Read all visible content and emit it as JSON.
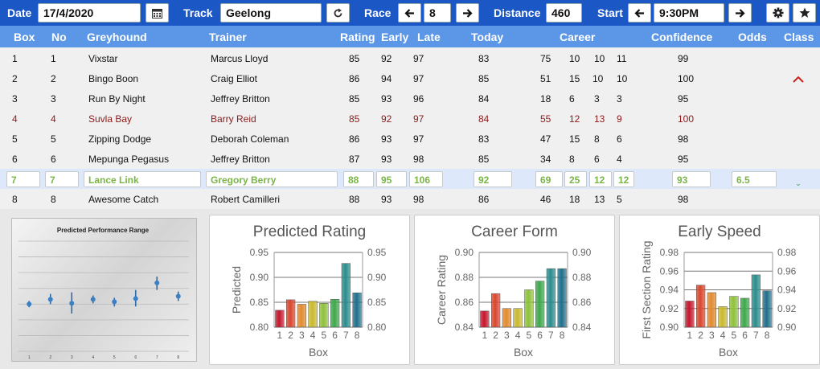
{
  "topbar": {
    "date_label": "Date",
    "date_value": "17/4/2020",
    "calendar_icon": "calendar-icon",
    "track_label": "Track",
    "track_value": "Geelong",
    "refresh_icon": "refresh-icon",
    "race_label": "Race",
    "race_value": "8",
    "prev_icon": "arrow-left-icon",
    "next_icon": "arrow-right-icon",
    "distance_label": "Distance",
    "distance_value": "460",
    "start_label": "Start",
    "start_value": "9:30PM",
    "settings_icon": "gear-icon",
    "favorite_icon": "star-icon"
  },
  "header": {
    "box": "Box",
    "no": "No",
    "greyhound": "Greyhound",
    "trainer": "Trainer",
    "rating": "Rating",
    "early": "Early",
    "late": "Late",
    "today": "Today",
    "career": "Career",
    "confidence": "Confidence",
    "odds": "Odds",
    "class": "Class"
  },
  "rows": [
    {
      "box": "1",
      "no": "1",
      "greyhound": "Vixstar",
      "trainer": "Marcus Lloyd",
      "rating": "85",
      "early": "92",
      "late": "97",
      "today": "83",
      "career": [
        "75",
        "10",
        "10",
        "11"
      ],
      "confidence": "99",
      "odds": "",
      "class": ""
    },
    {
      "box": "2",
      "no": "2",
      "greyhound": "Bingo Boon",
      "trainer": "Craig Elliot",
      "rating": "86",
      "early": "94",
      "late": "97",
      "today": "85",
      "career": [
        "51",
        "15",
        "10",
        "10"
      ],
      "confidence": "100",
      "odds": "",
      "class": "up"
    },
    {
      "box": "3",
      "no": "3",
      "greyhound": "Run By Night",
      "trainer": "Jeffrey Britton",
      "rating": "85",
      "early": "93",
      "late": "96",
      "today": "84",
      "career": [
        "18",
        "6",
        "3",
        "3"
      ],
      "confidence": "95",
      "odds": "",
      "class": ""
    },
    {
      "box": "4",
      "no": "4",
      "greyhound": "Suvla Bay",
      "trainer": "Barry Reid",
      "rating": "85",
      "early": "92",
      "late": "97",
      "today": "84",
      "career": [
        "55",
        "12",
        "13",
        "9"
      ],
      "confidence": "100",
      "odds": "",
      "class": ""
    },
    {
      "box": "5",
      "no": "5",
      "greyhound": "Zipping Dodge",
      "trainer": "Deborah Coleman",
      "rating": "86",
      "early": "93",
      "late": "97",
      "today": "83",
      "career": [
        "47",
        "15",
        "8",
        "6"
      ],
      "confidence": "98",
      "odds": "",
      "class": ""
    },
    {
      "box": "6",
      "no": "6",
      "greyhound": "Mepunga Pegasus",
      "trainer": "Jeffrey Britton",
      "rating": "87",
      "early": "93",
      "late": "98",
      "today": "85",
      "career": [
        "34",
        "8",
        "6",
        "4"
      ],
      "confidence": "95",
      "odds": "",
      "class": ""
    },
    {
      "box": "7",
      "no": "7",
      "greyhound": "Lance Link",
      "trainer": "Gregory Berry",
      "rating": "88",
      "early": "95",
      "late": "106",
      "today": "92",
      "career": [
        "69",
        "25",
        "12",
        "12"
      ],
      "confidence": "93",
      "odds": "6.5",
      "class": "down"
    },
    {
      "box": "8",
      "no": "8",
      "greyhound": "Awesome Catch",
      "trainer": "Robert Camilleri",
      "rating": "88",
      "early": "93",
      "late": "98",
      "today": "86",
      "career": [
        "46",
        "18",
        "13",
        "5"
      ],
      "confidence": "98",
      "odds": "",
      "class": ""
    }
  ],
  "colors": {
    "topbar": "#1c57c6",
    "header": "#5b97e6",
    "highlight_text": "#7ab545",
    "red_row": "#8b1a1a",
    "class_up": "#cc2020",
    "class_down": "#2e8b2e"
  },
  "chart_data": [
    {
      "type": "scatter",
      "title": "Predicted Performance Range",
      "xlabel": "",
      "ylabel": "",
      "categories": [
        "1",
        "2",
        "3",
        "4",
        "5",
        "6",
        "7",
        "8"
      ],
      "series": [
        {
          "values": [
            0.86,
            0.866,
            0.861,
            0.866,
            0.863,
            0.867,
            0.887,
            0.87
          ],
          "low": [
            0.856,
            0.86,
            0.848,
            0.861,
            0.857,
            0.857,
            0.878,
            0.864
          ],
          "high": [
            0.864,
            0.873,
            0.875,
            0.871,
            0.868,
            0.878,
            0.895,
            0.876
          ]
        }
      ],
      "ylim": [
        0.8,
        0.94
      ],
      "grid": true,
      "legend": "none"
    },
    {
      "type": "bar",
      "title": "Predicted Rating",
      "xlabel": "Box",
      "ylabel": "Predicted",
      "categories": [
        "1",
        "2",
        "3",
        "4",
        "5",
        "6",
        "7",
        "8"
      ],
      "values": [
        0.834,
        0.855,
        0.846,
        0.852,
        0.848,
        0.856,
        0.928,
        0.869
      ],
      "ylim": [
        0.8,
        0.95
      ],
      "yticks": [
        "0.80",
        "0.85",
        "0.90",
        "0.95"
      ],
      "grid": true,
      "legend": "none"
    },
    {
      "type": "bar",
      "title": "Career Form",
      "xlabel": "Box",
      "ylabel": "Career Rating",
      "categories": [
        "1",
        "2",
        "3",
        "4",
        "5",
        "6",
        "7",
        "8"
      ],
      "values": [
        0.853,
        0.867,
        0.855,
        0.855,
        0.87,
        0.877,
        0.887,
        0.887
      ],
      "ylim": [
        0.84,
        0.9
      ],
      "yticks": [
        "0.84",
        "0.86",
        "0.88",
        "0.90"
      ],
      "grid": true,
      "legend": "none"
    },
    {
      "type": "bar",
      "title": "Early Speed",
      "xlabel": "Box",
      "ylabel": "First Section Rating",
      "categories": [
        "1",
        "2",
        "3",
        "4",
        "5",
        "6",
        "7",
        "8"
      ],
      "values": [
        0.928,
        0.945,
        0.937,
        0.922,
        0.933,
        0.931,
        0.956,
        0.939
      ],
      "ylim": [
        0.9,
        0.98
      ],
      "yticks": [
        "0.90",
        "0.92",
        "0.94",
        "0.96",
        "0.98"
      ],
      "grid": true,
      "legend": "none"
    }
  ]
}
